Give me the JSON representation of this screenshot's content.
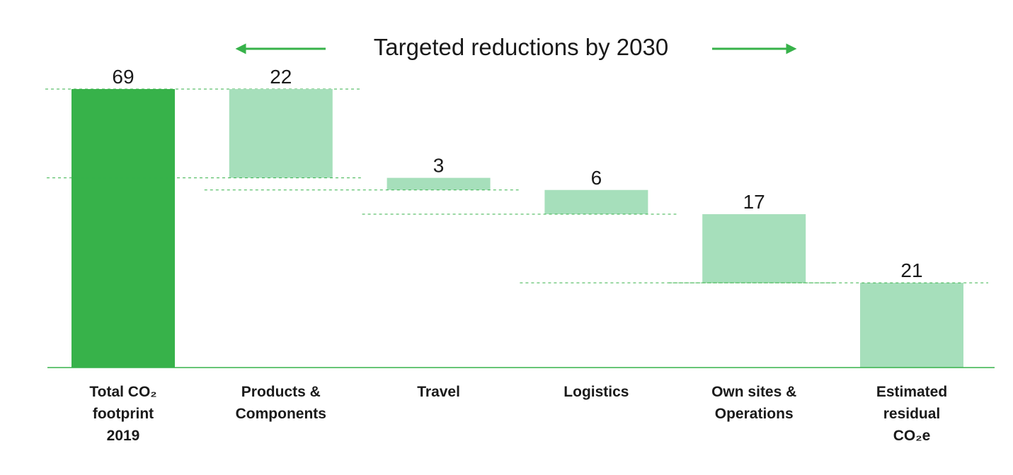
{
  "chart_data": {
    "type": "waterfall",
    "title": "Targeted reductions by 2030",
    "categories": [
      [
        "Total CO₂",
        "footprint",
        "2019"
      ],
      [
        "Products &",
        "Components"
      ],
      [
        "Travel"
      ],
      [
        "Logistics"
      ],
      [
        "Own sites &",
        "Operations"
      ],
      [
        "Estimated",
        "residual",
        "CO₂e"
      ]
    ],
    "values": [
      69,
      22,
      3,
      6,
      17,
      21
    ],
    "kinds": [
      "total",
      "reduction",
      "reduction",
      "reduction",
      "reduction",
      "total"
    ],
    "ylim": [
      0,
      69
    ],
    "grid": false,
    "colors": {
      "total": "#37b24a",
      "reduction": "#a6dfbb",
      "residual": "#a6dfbb",
      "axis": "#37b24a",
      "connector": "#37b24a",
      "arrow": "#37b24a"
    }
  }
}
